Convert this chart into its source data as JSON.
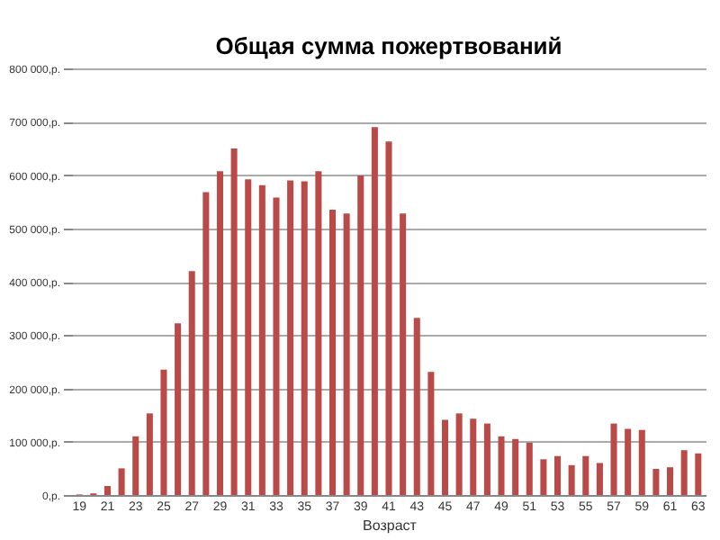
{
  "chart_data": {
    "type": "bar",
    "title": "Общая сумма пожертвований",
    "xlabel": "Возраст",
    "categories": [
      "19",
      null,
      "21",
      null,
      "23",
      null,
      "25",
      null,
      "27",
      null,
      "29",
      null,
      "31",
      null,
      "33",
      null,
      "35",
      null,
      "37",
      null,
      "39",
      null,
      "41",
      null,
      "43",
      null,
      "45",
      null,
      "47",
      null,
      "49",
      null,
      "51",
      null,
      "53",
      null,
      "55",
      null,
      "57",
      null,
      "59",
      null,
      "61",
      null,
      "63"
    ],
    "values": [
      1000,
      3000,
      17000,
      50000,
      110000,
      153000,
      235000,
      322000,
      420000,
      568000,
      607000,
      650000,
      592000,
      581000,
      558000,
      590000,
      588000,
      607000,
      535000,
      528000,
      599000,
      690000,
      663000,
      528000,
      332000,
      231000,
      141000,
      153000,
      143000,
      134000,
      110000,
      105000,
      98000,
      67000,
      73000,
      56000,
      73000,
      60000,
      134000,
      124000,
      122000,
      49000,
      52000,
      84000,
      78000
    ],
    "color": "#b94a48",
    "ylim": [
      0,
      800000
    ],
    "yticks": [
      {
        "value": 0,
        "label": "0,р."
      },
      {
        "value": 100000,
        "label": "100 000,р."
      },
      {
        "value": 200000,
        "label": "200 000,р."
      },
      {
        "value": 300000,
        "label": "300 000,р."
      },
      {
        "value": 400000,
        "label": "400 000,р."
      },
      {
        "value": 500000,
        "label": "500 000,р."
      },
      {
        "value": 600000,
        "label": "600 000,р."
      },
      {
        "value": 700000,
        "label": "700 000,р."
      },
      {
        "value": 800000,
        "label": "800 000,р."
      }
    ],
    "grid": "y"
  }
}
